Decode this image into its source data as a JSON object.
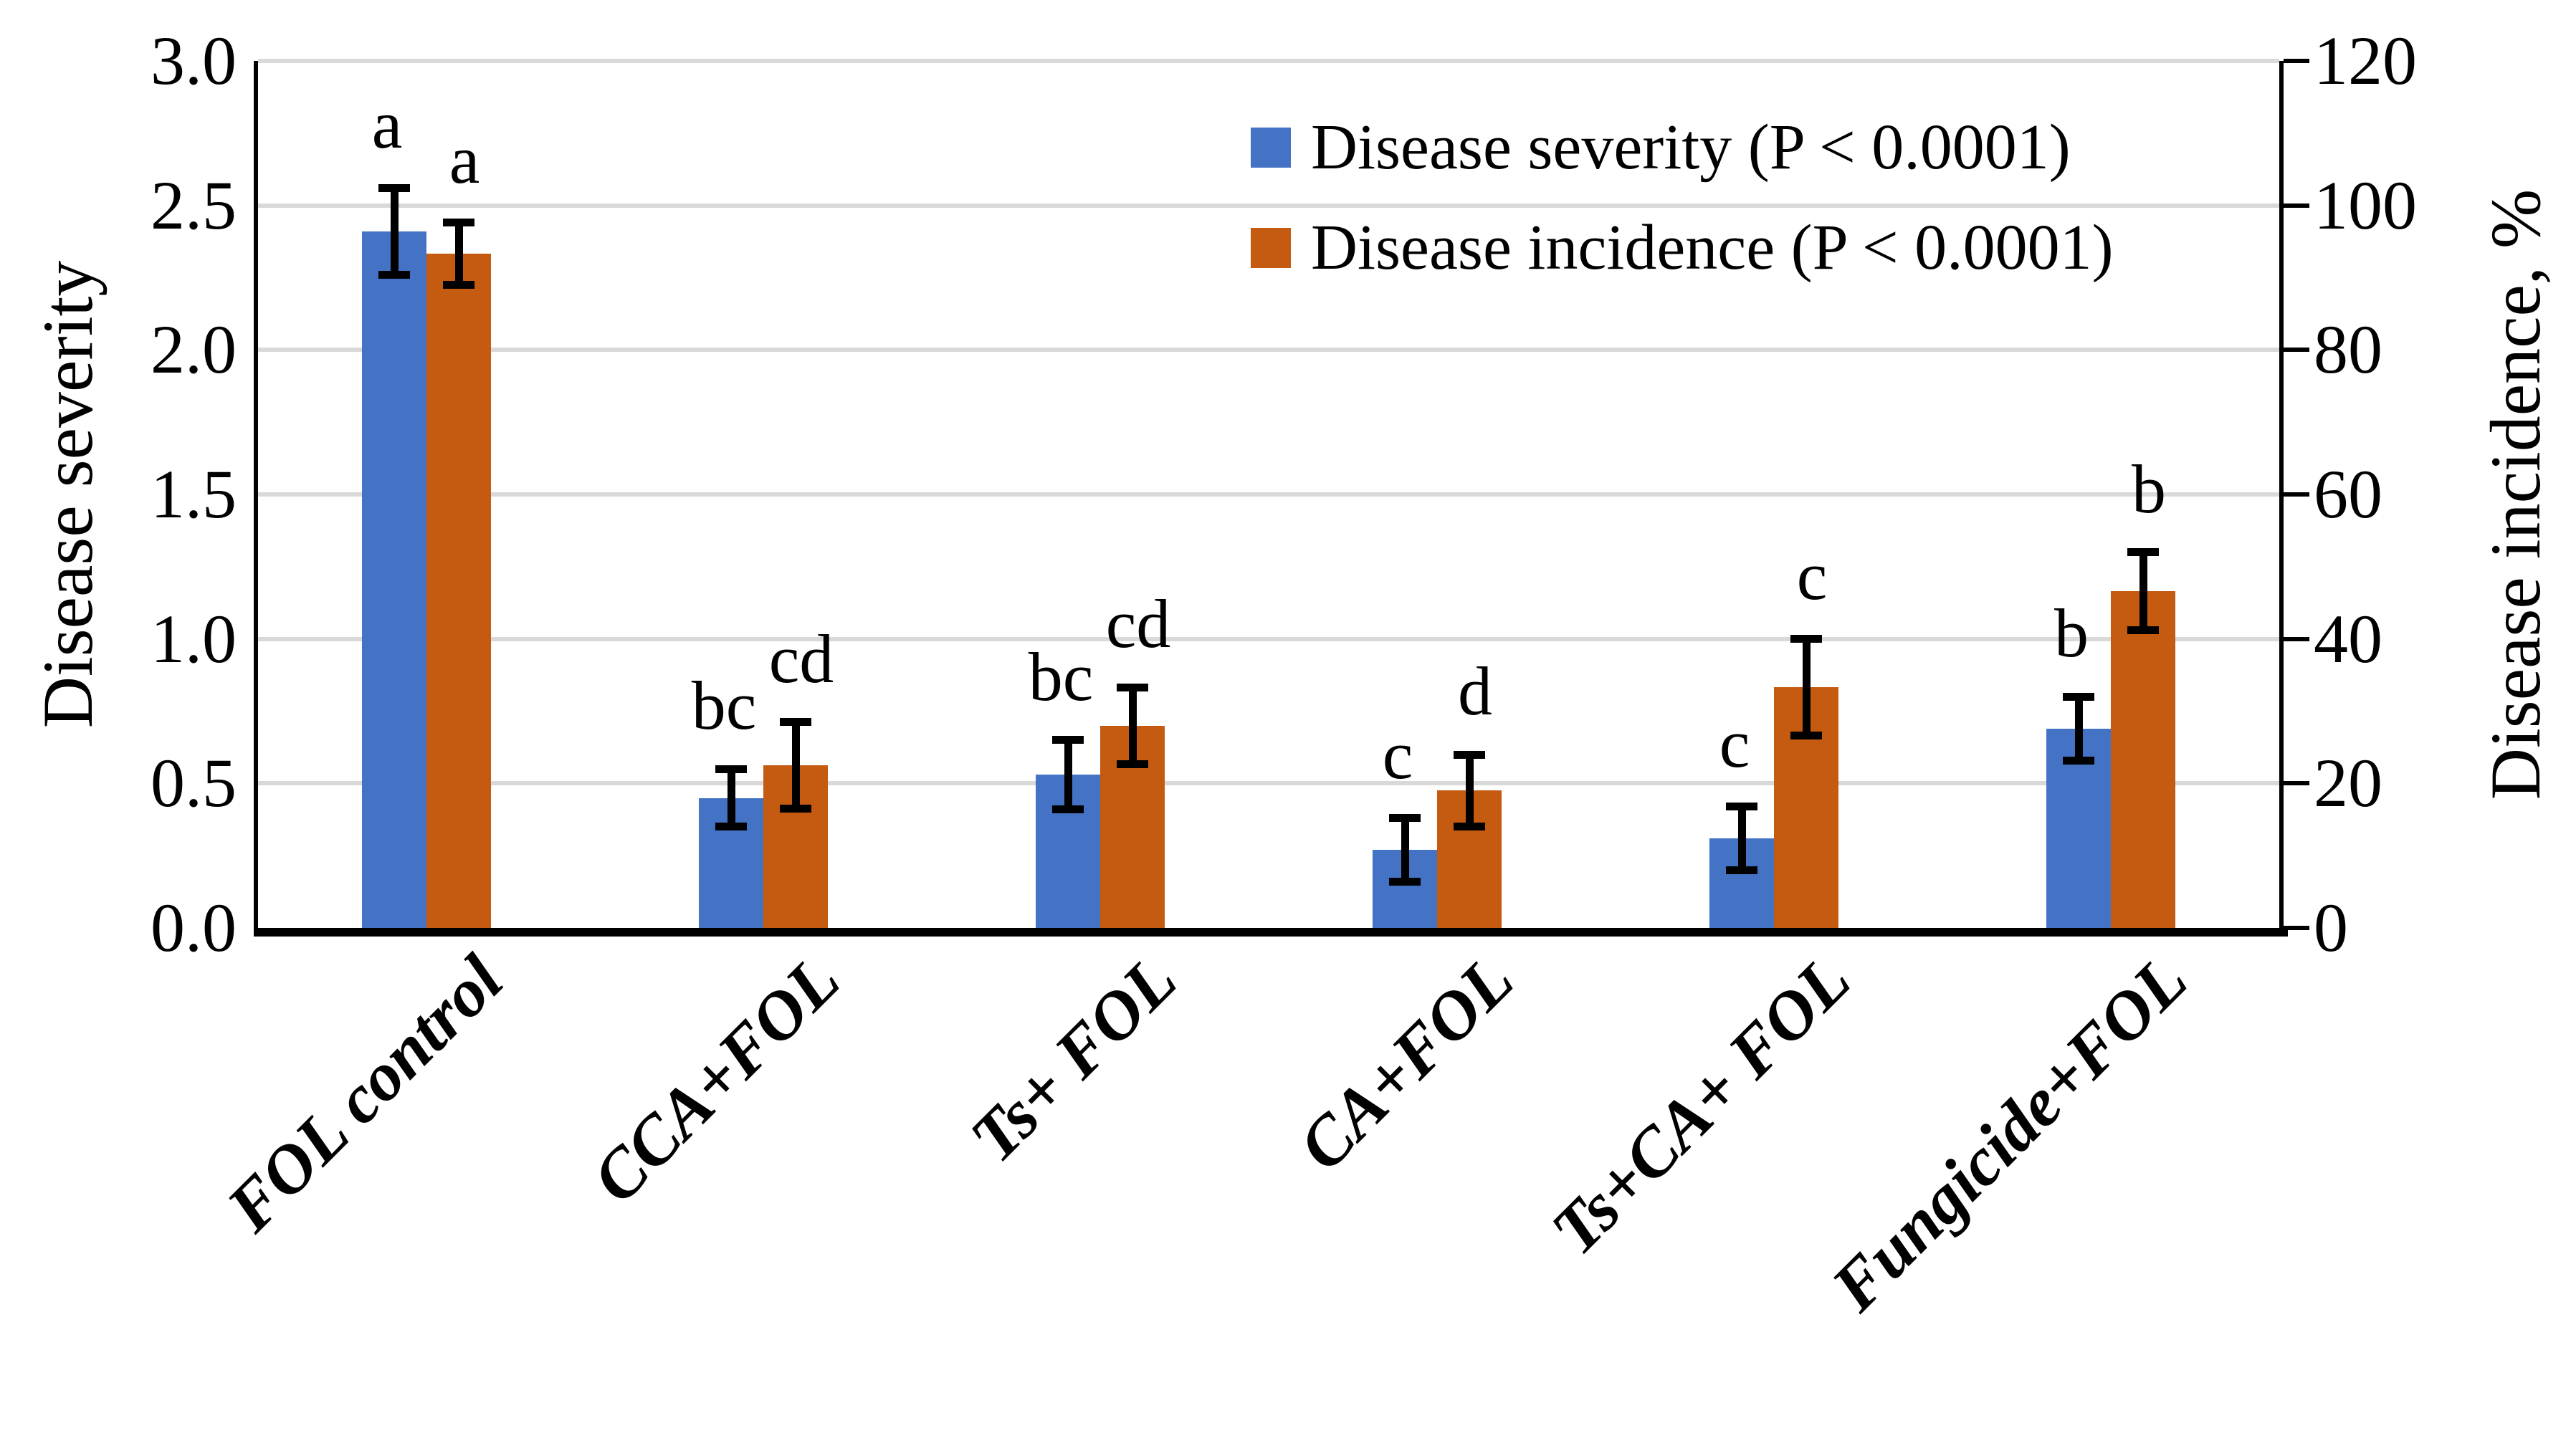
{
  "figure": {
    "left_axis": {
      "title": "Disease severity",
      "ticks": [
        "3.0",
        "2.5",
        "2.0",
        "1.5",
        "1.0",
        "0.5",
        "0.0"
      ]
    },
    "right_axis": {
      "title": "Disease incidence, %",
      "ticks": [
        "120",
        "100",
        "80",
        "60",
        "40",
        "20",
        "0"
      ]
    },
    "legend": {
      "items": [
        {
          "label": "Disease severity (P < 0.0001)",
          "color": "#4472C4"
        },
        {
          "label": "Disease incidence (P < 0.0001)",
          "color": "#C55A11"
        }
      ]
    },
    "colors": {
      "severity_bar": "#4472C4",
      "incidence_bar": "#C55A11",
      "gridline": "#D9D9D9",
      "axis": "#000000",
      "background": "#FFFFFF"
    }
  },
  "chart_data": {
    "type": "bar",
    "title": "",
    "xlabel": "",
    "categories": [
      "FOL control",
      "CCA+FOL",
      "Ts+ FOL",
      "CA+FOL",
      "Ts+CA+ FOL",
      "Fungicide+FOL"
    ],
    "series": [
      {
        "name": "Disease severity (P < 0.0001)",
        "axis": "left",
        "ylabel": "Disease severity",
        "ylim": [
          0,
          3.0
        ],
        "color": "#4472C4",
        "values": [
          2.41,
          0.45,
          0.53,
          0.27,
          0.31,
          0.69
        ],
        "errors": [
          0.15,
          0.1,
          0.12,
          0.11,
          0.11,
          0.11
        ],
        "letters": [
          "a",
          "bc",
          "bc",
          "c",
          "c",
          "b"
        ]
      },
      {
        "name": "Disease incidence (P < 0.0001)",
        "axis": "right",
        "ylabel": "Disease incidence, %",
        "ylim": [
          0,
          120
        ],
        "color": "#C55A11",
        "values": [
          93.3,
          22.5,
          28.0,
          19.0,
          33.3,
          46.6
        ],
        "errors": [
          4.3,
          6.0,
          5.3,
          5.0,
          6.7,
          5.4
        ],
        "letters": [
          "a",
          "cd",
          "cd",
          "d",
          "c",
          "b"
        ]
      }
    ],
    "grid": true,
    "gridline_values_left": [
      3.0,
      2.5,
      2.0,
      1.5,
      1.0,
      0.5
    ],
    "legend_position": "upper-right-inside"
  }
}
